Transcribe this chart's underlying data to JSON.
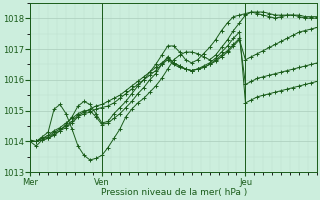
{
  "xlabel": "Pression niveau de la mer( hPa )",
  "ylim": [
    1013,
    1018.5
  ],
  "xlim": [
    0,
    96
  ],
  "yticks": [
    1013,
    1014,
    1015,
    1016,
    1017,
    1018
  ],
  "day_labels": [
    "Mer",
    "Ven",
    "Jeu"
  ],
  "day_positions": [
    0,
    24,
    72
  ],
  "bg_color": "#cceedd",
  "grid_major_color": "#aaccbb",
  "grid_minor_color": "#bbddcc",
  "line_color": "#1a5c1a",
  "series": [
    {
      "x": [
        0,
        2,
        4,
        6,
        8,
        10,
        12,
        14,
        16,
        18,
        20,
        22,
        24,
        26,
        28,
        30,
        32,
        34,
        36,
        38,
        40,
        42,
        44,
        46,
        48,
        50,
        52,
        54,
        56,
        58,
        60,
        62,
        64,
        66,
        68,
        70,
        72,
        74,
        76,
        78,
        80,
        82,
        84,
        86,
        88,
        90,
        92,
        94,
        96
      ],
      "y": [
        1014.0,
        1013.85,
        1014.05,
        1014.1,
        1014.2,
        1014.35,
        1014.55,
        1014.8,
        1015.15,
        1015.3,
        1015.2,
        1014.9,
        1014.6,
        1014.65,
        1014.9,
        1015.1,
        1015.3,
        1015.55,
        1015.8,
        1016.0,
        1016.25,
        1016.5,
        1016.8,
        1017.1,
        1017.1,
        1016.9,
        1016.65,
        1016.55,
        1016.65,
        1016.85,
        1017.05,
        1017.3,
        1017.6,
        1017.85,
        1018.05,
        1018.1,
        1018.15,
        1018.2,
        1018.2,
        1018.2,
        1018.15,
        1018.1,
        1018.1,
        1018.1,
        1018.1,
        1018.1,
        1018.05,
        1018.05,
        1018.05
      ]
    },
    {
      "x": [
        0,
        2,
        4,
        6,
        8,
        10,
        12,
        14,
        16,
        18,
        20,
        22,
        24,
        26,
        28,
        30,
        32,
        34,
        36,
        38,
        40,
        42,
        44,
        46,
        48,
        50,
        52,
        54,
        56,
        58,
        60,
        62,
        64,
        66,
        68,
        70,
        72,
        74,
        76,
        78,
        80,
        82,
        84,
        86,
        88,
        90,
        92,
        94,
        96
      ],
      "y": [
        1014.05,
        1014.0,
        1014.15,
        1014.3,
        1015.05,
        1015.2,
        1014.9,
        1014.4,
        1013.85,
        1013.55,
        1013.4,
        1013.45,
        1013.55,
        1013.8,
        1014.1,
        1014.4,
        1014.8,
        1015.05,
        1015.25,
        1015.4,
        1015.6,
        1015.8,
        1016.05,
        1016.35,
        1016.65,
        1016.8,
        1016.9,
        1016.9,
        1016.85,
        1016.75,
        1016.65,
        1016.8,
        1017.05,
        1017.3,
        1017.6,
        1017.85,
        1018.1,
        1018.2,
        1018.15,
        1018.1,
        1018.05,
        1018.0,
        1018.05,
        1018.1,
        1018.1,
        1018.05,
        1018.0,
        1018.0,
        1018.0
      ]
    },
    {
      "x": [
        0,
        2,
        4,
        6,
        8,
        10,
        12,
        14,
        16,
        18,
        20,
        22,
        24,
        26,
        28,
        30,
        32,
        34,
        36,
        38,
        40,
        42,
        44,
        46,
        48,
        50,
        52,
        54,
        56,
        58,
        60,
        62,
        64,
        66,
        68,
        70,
        72,
        74,
        76,
        78,
        80,
        82,
        84,
        86,
        88,
        90,
        92,
        94,
        96
      ],
      "y": [
        1014.0,
        1014.0,
        1014.1,
        1014.2,
        1014.35,
        1014.45,
        1014.6,
        1014.75,
        1014.9,
        1015.0,
        1015.0,
        1014.8,
        1014.55,
        1014.6,
        1014.75,
        1014.9,
        1015.1,
        1015.3,
        1015.55,
        1015.75,
        1016.0,
        1016.2,
        1016.5,
        1016.75,
        1016.55,
        1016.45,
        1016.35,
        1016.3,
        1016.35,
        1016.45,
        1016.55,
        1016.7,
        1016.9,
        1017.1,
        1017.35,
        1017.55,
        1015.25,
        1015.35,
        1015.45,
        1015.5,
        1015.55,
        1015.6,
        1015.65,
        1015.7,
        1015.75,
        1015.8,
        1015.85,
        1015.9,
        1015.95
      ]
    },
    {
      "x": [
        0,
        2,
        4,
        6,
        8,
        10,
        12,
        14,
        16,
        18,
        20,
        22,
        24,
        26,
        28,
        30,
        32,
        34,
        36,
        38,
        40,
        42,
        44,
        46,
        48,
        50,
        52,
        54,
        56,
        58,
        60,
        62,
        64,
        66,
        68,
        70,
        72,
        74,
        76,
        78,
        80,
        82,
        84,
        86,
        88,
        90,
        92,
        94,
        96
      ],
      "y": [
        1014.0,
        1014.0,
        1014.1,
        1014.15,
        1014.3,
        1014.4,
        1014.5,
        1014.65,
        1014.85,
        1014.95,
        1015.05,
        1015.15,
        1015.2,
        1015.3,
        1015.4,
        1015.5,
        1015.65,
        1015.8,
        1015.95,
        1016.1,
        1016.25,
        1016.4,
        1016.55,
        1016.7,
        1016.55,
        1016.45,
        1016.35,
        1016.3,
        1016.35,
        1016.4,
        1016.5,
        1016.65,
        1016.8,
        1016.95,
        1017.15,
        1017.35,
        1015.85,
        1015.95,
        1016.05,
        1016.1,
        1016.15,
        1016.2,
        1016.25,
        1016.3,
        1016.35,
        1016.4,
        1016.45,
        1016.5,
        1016.55
      ]
    },
    {
      "x": [
        0,
        2,
        4,
        6,
        8,
        10,
        12,
        14,
        16,
        18,
        20,
        22,
        24,
        26,
        28,
        30,
        32,
        34,
        36,
        38,
        40,
        42,
        44,
        46,
        48,
        50,
        52,
        54,
        56,
        58,
        60,
        62,
        64,
        66,
        68,
        70,
        72,
        74,
        76,
        78,
        80,
        82,
        84,
        86,
        88,
        90,
        92,
        94,
        96
      ],
      "y": [
        1014.0,
        1014.0,
        1014.05,
        1014.1,
        1014.25,
        1014.35,
        1014.45,
        1014.6,
        1014.8,
        1014.9,
        1014.95,
        1015.05,
        1015.1,
        1015.15,
        1015.25,
        1015.4,
        1015.55,
        1015.7,
        1015.85,
        1016.0,
        1016.15,
        1016.3,
        1016.5,
        1016.65,
        1016.5,
        1016.4,
        1016.35,
        1016.3,
        1016.35,
        1016.4,
        1016.5,
        1016.6,
        1016.75,
        1016.9,
        1017.1,
        1017.3,
        1016.65,
        1016.75,
        1016.85,
        1016.95,
        1017.05,
        1017.15,
        1017.25,
        1017.35,
        1017.45,
        1017.55,
        1017.6,
        1017.65,
        1017.7
      ]
    }
  ]
}
